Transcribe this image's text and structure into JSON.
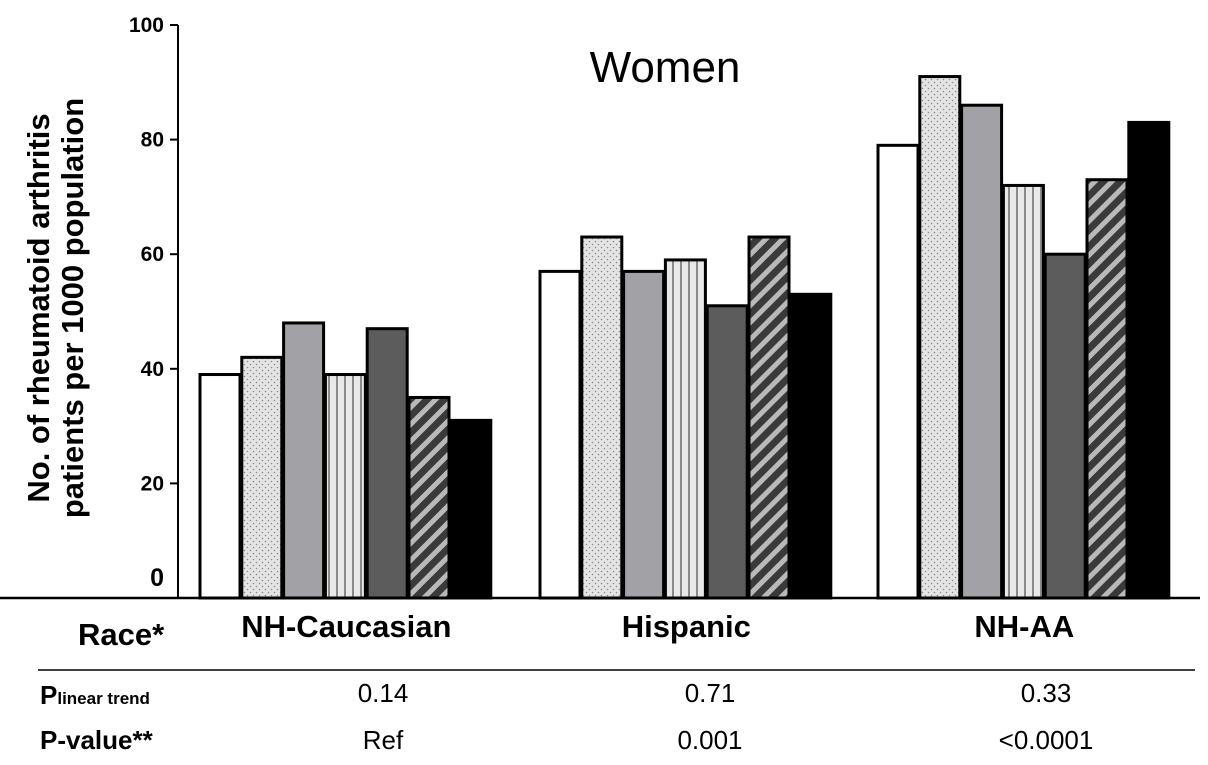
{
  "chart_data": {
    "type": "bar",
    "title": "Women",
    "ylabel_line1": "No. of rheumatoid arthritis",
    "ylabel_line2": "patients per 1000 population",
    "ylim": [
      0,
      100
    ],
    "yticks": [
      "0",
      "20",
      "40",
      "60",
      "80",
      "100"
    ],
    "categories": [
      "NH-Caucasian",
      "Hispanic",
      "NH-AA"
    ],
    "series": [
      {
        "fill": "white",
        "values": [
          39,
          57,
          79
        ]
      },
      {
        "fill": "dotted",
        "values": [
          42,
          63,
          91
        ]
      },
      {
        "fill": "gray",
        "values": [
          48,
          57,
          86
        ]
      },
      {
        "fill": "vertical-stripes",
        "values": [
          39,
          59,
          72
        ]
      },
      {
        "fill": "dark-gray",
        "values": [
          47,
          51,
          60
        ]
      },
      {
        "fill": "diagonal-stripes",
        "values": [
          35,
          63,
          73
        ]
      },
      {
        "fill": "black",
        "values": [
          31,
          53,
          83
        ]
      }
    ],
    "grid": false
  },
  "table": {
    "race_label": "Race*",
    "p_linear_main": "P",
    "p_linear_sub": "linear trend",
    "p_linear_values": [
      "0.14",
      "0.71",
      "0.33"
    ],
    "p_value_label": "P-value**",
    "p_value_values": [
      "Ref",
      "0.001",
      "<0.0001"
    ]
  }
}
